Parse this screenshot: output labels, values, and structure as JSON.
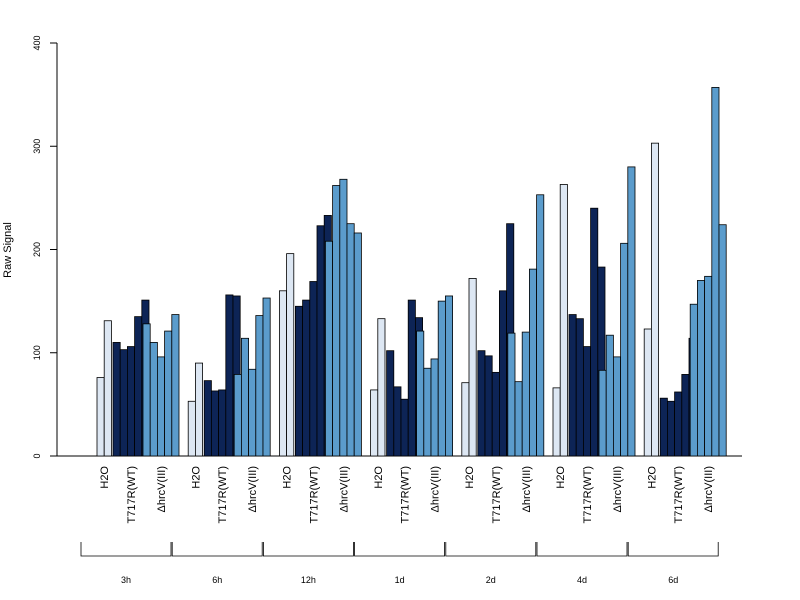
{
  "chart_data": {
    "type": "bar",
    "ylabel": "Raw Signal",
    "ylim": [
      0,
      400
    ],
    "yticks": [
      0,
      100,
      200,
      300,
      400
    ],
    "grid": false,
    "legend": "none",
    "colors": {
      "H2O": "#dde7f3",
      "T717R(WT)": "#0d2456",
      "ΔhrcV(III)": "#5b9ccc"
    },
    "condition_labels": [
      "H2O",
      "T717R(WT)",
      "ΔhrcV(III)"
    ],
    "timepoints": [
      {
        "label": "3h",
        "groups": [
          {
            "condition": "H2O",
            "values": [
              76,
              131
            ]
          },
          {
            "condition": "T717R(WT)",
            "values": [
              110,
              103,
              106,
              135,
              151
            ]
          },
          {
            "condition": "ΔhrcV(III)",
            "values": [
              128,
              110,
              96,
              121,
              137
            ]
          }
        ]
      },
      {
        "label": "6h",
        "groups": [
          {
            "condition": "H2O",
            "values": [
              53,
              90
            ]
          },
          {
            "condition": "T717R(WT)",
            "values": [
              73,
              63,
              64,
              156,
              155
            ]
          },
          {
            "condition": "ΔhrcV(III)",
            "values": [
              79,
              114,
              84,
              136,
              153
            ]
          }
        ]
      },
      {
        "label": "12h",
        "groups": [
          {
            "condition": "H2O",
            "values": [
              160,
              196
            ]
          },
          {
            "condition": "T717R(WT)",
            "values": [
              145,
              151,
              169,
              223,
              233
            ]
          },
          {
            "condition": "ΔhrcV(III)",
            "values": [
              208,
              262,
              268,
              225,
              216
            ]
          }
        ]
      },
      {
        "label": "1d",
        "groups": [
          {
            "condition": "H2O",
            "values": [
              64,
              133
            ]
          },
          {
            "condition": "T717R(WT)",
            "values": [
              102,
              67,
              55,
              151,
              134
            ]
          },
          {
            "condition": "ΔhrcV(III)",
            "values": [
              121,
              85,
              94,
              150,
              155
            ]
          }
        ]
      },
      {
        "label": "2d",
        "groups": [
          {
            "condition": "H2O",
            "values": [
              71,
              172
            ]
          },
          {
            "condition": "T717R(WT)",
            "values": [
              102,
              97,
              81,
              160,
              225
            ]
          },
          {
            "condition": "ΔhrcV(III)",
            "values": [
              119,
              72,
              120,
              181,
              253
            ]
          }
        ]
      },
      {
        "label": "4d",
        "groups": [
          {
            "condition": "H2O",
            "values": [
              66,
              263
            ]
          },
          {
            "condition": "T717R(WT)",
            "values": [
              137,
              133,
              106,
              240,
              183
            ]
          },
          {
            "condition": "ΔhrcV(III)",
            "values": [
              83,
              117,
              96,
              206,
              280
            ]
          }
        ]
      },
      {
        "label": "6d",
        "groups": [
          {
            "condition": "H2O",
            "values": [
              123,
              303
            ]
          },
          {
            "condition": "T717R(WT)",
            "values": [
              56,
              53,
              62,
              79,
              114
            ]
          },
          {
            "condition": "ΔhrcV(III)",
            "values": [
              147,
              170,
              174,
              357,
              224
            ]
          }
        ]
      }
    ]
  }
}
